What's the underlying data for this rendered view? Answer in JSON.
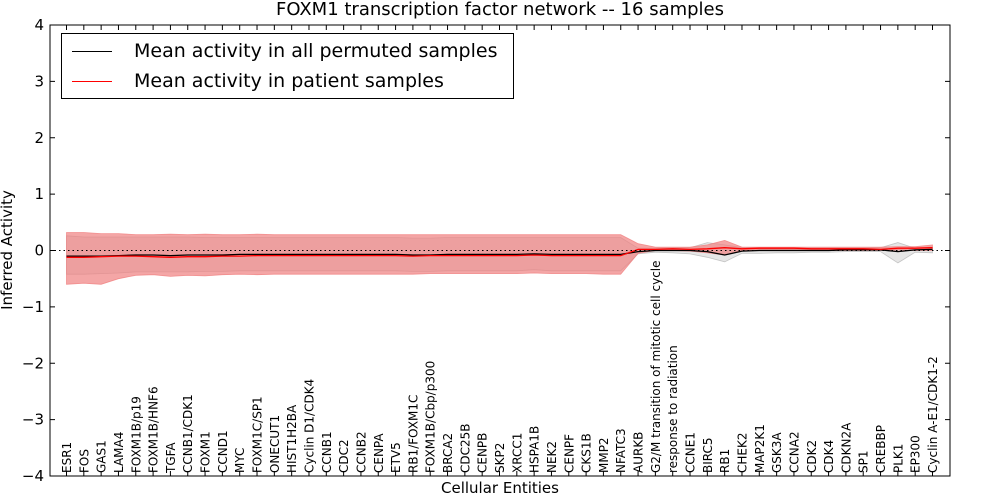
{
  "chart_data": {
    "type": "line",
    "title": "FOXM1 transcription factor network -- 16 samples",
    "xlabel": "Cellular Entities",
    "ylabel": "Inferred Activity",
    "ylim": [
      -4,
      4
    ],
    "yticks": [
      "4",
      "3",
      "2",
      "1",
      "0",
      "−1",
      "−2",
      "−3",
      "−4"
    ],
    "reference_line": 0,
    "categories": [
      "ESR1",
      "FOS",
      "GAS1",
      "LAMA4",
      "FOXM1B/p19",
      "FOXM1B/HNF6",
      "TGFA",
      "CCNB1/CDK1",
      "FOXM1",
      "CCND1",
      "MYC",
      "FOXM1C/SP1",
      "ONECUT1",
      "HIST1H2BA",
      "Cyclin D1/CDK4",
      "CCNB1",
      "CDC2",
      "CCNB2",
      "CENPA",
      "ETV5",
      "RB1/FOXM1C",
      "FOXM1B/Cbp/p300",
      "BRCA2",
      "CDC25B",
      "CENPB",
      "SKP2",
      "XRCC1",
      "HSPA1B",
      "NEK2",
      "CENPF",
      "CKS1B",
      "MMP2",
      "NFATC3",
      "AURKB",
      "G2/M transition of mitotic cell cycle",
      "response to radiation",
      "CCNE1",
      "BIRC5",
      "RB1",
      "CHEK2",
      "MAP2K1",
      "GSK3A",
      "CCNA2",
      "CDK2",
      "CDK4",
      "CDKN2A",
      "SP1",
      "CREBBP",
      "PLK1",
      "EP300",
      "Cyclin A-E1/CDK1-2"
    ],
    "series": [
      {
        "name": "Mean activity in all permuted samples",
        "color": "#000000",
        "values": [
          -0.1,
          -0.1,
          -0.1,
          -0.09,
          -0.08,
          -0.08,
          -0.09,
          -0.08,
          -0.08,
          -0.08,
          -0.07,
          -0.07,
          -0.07,
          -0.07,
          -0.07,
          -0.07,
          -0.07,
          -0.07,
          -0.07,
          -0.07,
          -0.08,
          -0.08,
          -0.07,
          -0.07,
          -0.07,
          -0.07,
          -0.07,
          -0.06,
          -0.07,
          -0.07,
          -0.07,
          -0.07,
          -0.07,
          -0.02,
          0.0,
          0.0,
          0.0,
          -0.02,
          -0.08,
          -0.01,
          0.0,
          0.0,
          0.0,
          0.0,
          0.0,
          0.01,
          0.01,
          0.01,
          -0.02,
          0.01,
          0.02
        ],
        "band_low": [
          -0.42,
          -0.42,
          -0.41,
          -0.4,
          -0.38,
          -0.38,
          -0.38,
          -0.38,
          -0.37,
          -0.37,
          -0.36,
          -0.36,
          -0.36,
          -0.36,
          -0.36,
          -0.36,
          -0.36,
          -0.36,
          -0.36,
          -0.36,
          -0.37,
          -0.37,
          -0.36,
          -0.36,
          -0.36,
          -0.36,
          -0.36,
          -0.34,
          -0.36,
          -0.36,
          -0.36,
          -0.36,
          -0.36,
          -0.06,
          -0.03,
          -0.04,
          -0.06,
          -0.12,
          -0.2,
          -0.05,
          -0.05,
          -0.04,
          -0.04,
          -0.03,
          -0.03,
          -0.02,
          -0.02,
          -0.02,
          -0.22,
          -0.03,
          -0.04
        ],
        "band_high": [
          0.26,
          0.24,
          0.24,
          0.24,
          0.24,
          0.24,
          0.24,
          0.24,
          0.23,
          0.23,
          0.23,
          0.23,
          0.23,
          0.23,
          0.23,
          0.23,
          0.23,
          0.23,
          0.23,
          0.23,
          0.22,
          0.22,
          0.23,
          0.23,
          0.23,
          0.23,
          0.23,
          0.23,
          0.23,
          0.23,
          0.23,
          0.23,
          0.23,
          0.04,
          0.04,
          0.04,
          0.05,
          0.14,
          0.1,
          0.05,
          0.04,
          0.04,
          0.04,
          0.04,
          0.04,
          0.04,
          0.04,
          0.05,
          0.14,
          0.04,
          0.06
        ]
      },
      {
        "name": "Mean activity in patient samples",
        "color": "#ff0000",
        "values": [
          -0.12,
          -0.12,
          -0.11,
          -0.1,
          -0.1,
          -0.11,
          -0.12,
          -0.11,
          -0.11,
          -0.1,
          -0.1,
          -0.09,
          -0.09,
          -0.09,
          -0.09,
          -0.09,
          -0.09,
          -0.09,
          -0.09,
          -0.09,
          -0.1,
          -0.09,
          -0.09,
          -0.09,
          -0.09,
          -0.09,
          -0.09,
          -0.08,
          -0.09,
          -0.09,
          -0.09,
          -0.09,
          -0.09,
          0.02,
          0.02,
          0.03,
          0.02,
          0.03,
          0.05,
          0.03,
          0.04,
          0.04,
          0.04,
          0.03,
          0.03,
          0.03,
          0.03,
          0.02,
          0.04,
          0.04,
          0.05
        ],
        "band_low": [
          -0.6,
          -0.58,
          -0.6,
          -0.5,
          -0.44,
          -0.43,
          -0.46,
          -0.44,
          -0.45,
          -0.43,
          -0.42,
          -0.43,
          -0.42,
          -0.42,
          -0.42,
          -0.42,
          -0.42,
          -0.42,
          -0.42,
          -0.42,
          -0.42,
          -0.41,
          -0.41,
          -0.41,
          -0.41,
          -0.41,
          -0.41,
          -0.4,
          -0.41,
          -0.41,
          -0.41,
          -0.42,
          -0.42,
          -0.05,
          0.0,
          0.0,
          -0.01,
          -0.04,
          -0.08,
          0.0,
          0.01,
          0.01,
          0.01,
          0.0,
          0.0,
          0.0,
          0.0,
          0.0,
          0.01,
          0.0,
          0.0
        ],
        "band_high": [
          0.32,
          0.32,
          0.3,
          0.3,
          0.28,
          0.28,
          0.29,
          0.28,
          0.29,
          0.28,
          0.28,
          0.29,
          0.28,
          0.28,
          0.28,
          0.28,
          0.28,
          0.28,
          0.28,
          0.28,
          0.28,
          0.28,
          0.28,
          0.28,
          0.28,
          0.28,
          0.28,
          0.28,
          0.28,
          0.28,
          0.28,
          0.28,
          0.28,
          0.12,
          0.06,
          0.06,
          0.06,
          0.1,
          0.18,
          0.06,
          0.06,
          0.06,
          0.06,
          0.06,
          0.06,
          0.06,
          0.06,
          0.06,
          0.07,
          0.07,
          0.1
        ]
      }
    ],
    "legend": {
      "location": "top-left",
      "entries": [
        "Mean activity in all permuted samples",
        "Mean activity in patient samples"
      ]
    }
  }
}
